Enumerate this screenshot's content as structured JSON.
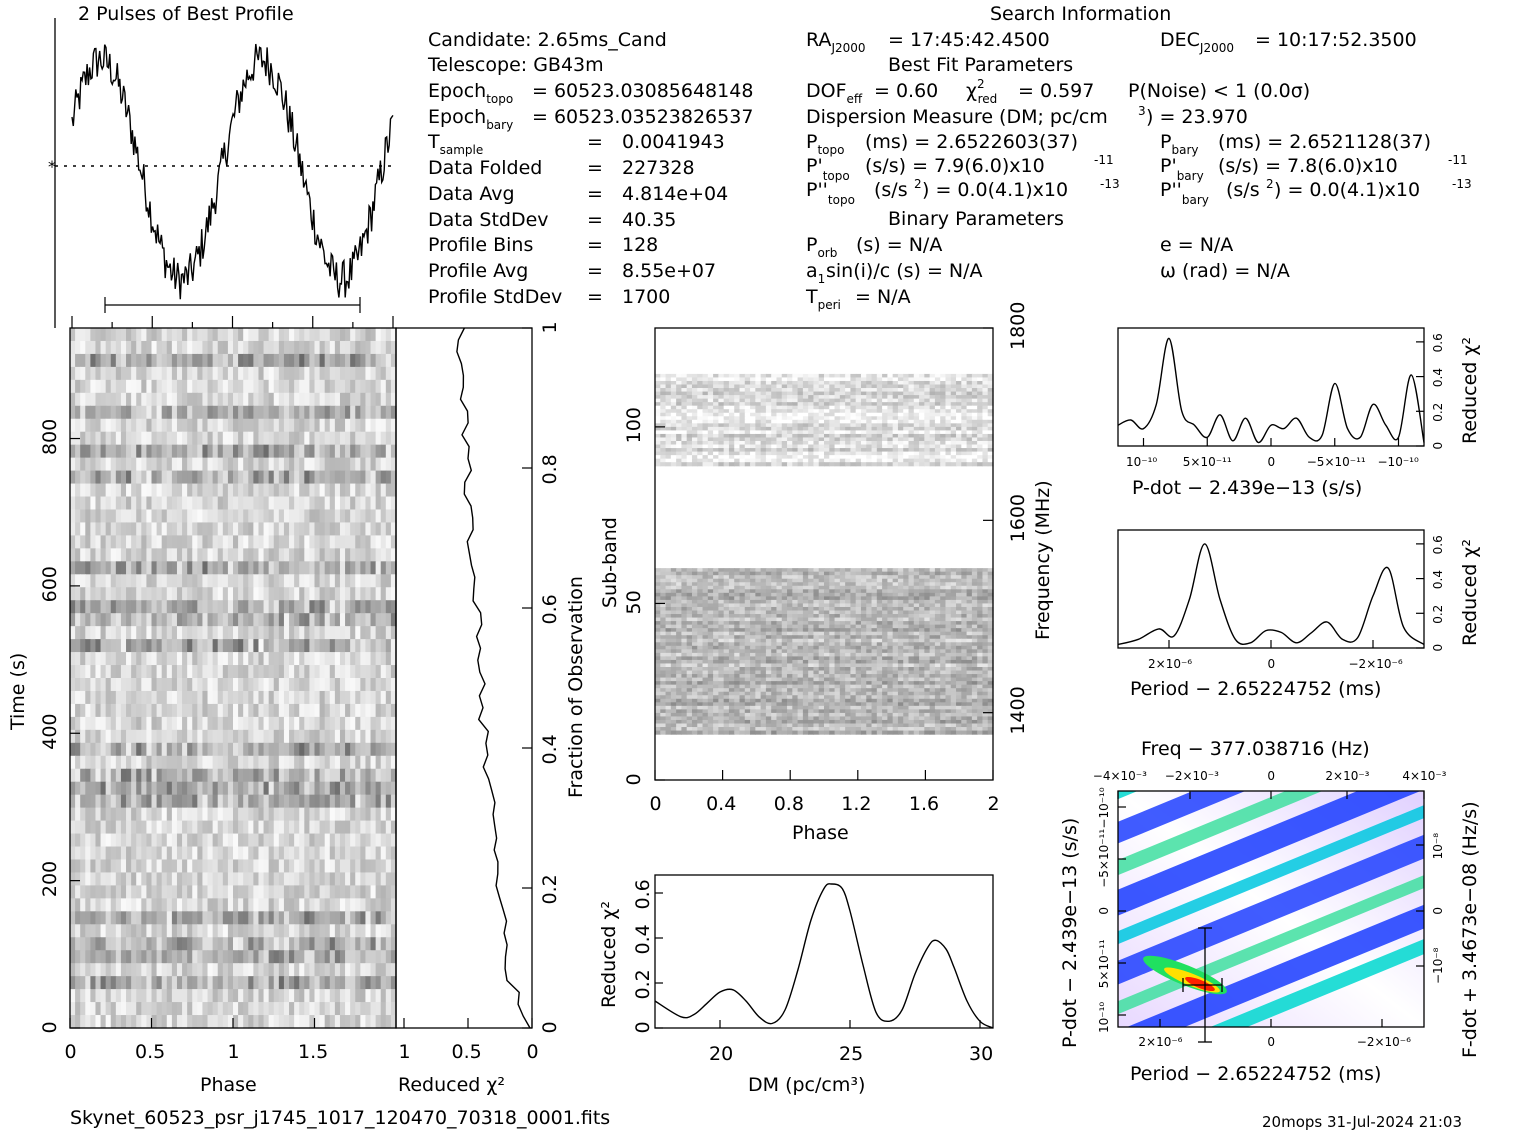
{
  "header": {
    "profile_title": "2 Pulses of Best Profile",
    "search_title": "Search Information",
    "best_fit_title": "Best Fit Parameters",
    "binary_title": "Binary Parameters"
  },
  "info_left": [
    {
      "label": "Candidate:  2.65ms_Cand",
      "value": ""
    },
    {
      "label": "Telescope:  GB43m",
      "value": ""
    },
    {
      "label": "Epoch_topo",
      "value": "= 60523.03085648148"
    },
    {
      "label": "Epoch_bary",
      "value": "= 60523.03523826537"
    },
    {
      "label": "T_sample",
      "value": "0.0041943"
    },
    {
      "label": "Data Folded",
      "value": "227328"
    },
    {
      "label": "Data Avg",
      "value": "4.814e+04"
    },
    {
      "label": "Data StdDev",
      "value": "40.35"
    },
    {
      "label": "Profile Bins",
      "value": "128"
    },
    {
      "label": "Profile Avg",
      "value": "8.55e+07"
    },
    {
      "label": "Profile StdDev",
      "value": "1700"
    }
  ],
  "search_info": {
    "ra": "= 17:45:42.4500",
    "dec": "= 10:17:52.3500",
    "dof": "= 0.60",
    "chi2_red": "= 0.597",
    "p_noise": "P(Noise) < 1   (0.0σ)",
    "dm": "Dispersion Measure (DM; pc/cm",
    "dm_value": ") = 23.970",
    "p_topo": "(ms) =  2.6522603(37)",
    "p_bary": "(ms) =  2.6521128(37)",
    "pd_topo": "(s/s) =  7.9(6.0)x10",
    "pd_bary": "(s/s) =  7.8(6.0)x10",
    "pd_exp": "-11",
    "pdd_topo": "(s/s",
    "pdd_bary": "(s/s",
    "pdd_value": ") = 0.0(4.1)x10",
    "pdd_exp": "-13",
    "p_orb": "(s) = N/A",
    "e": "e = N/A",
    "a1": "sin(i)/c (s) = N/A",
    "omega": "ω (rad) = N/A",
    "t_peri": "= N/A"
  },
  "footer": {
    "filename": "Skynet_60523_psr_j1745_1017_120470_70318_0001.fits",
    "stamp": "20mops 31-Jul-2024 21:03"
  },
  "colors": {
    "line": "#000000",
    "grid_bg": "#ffffff"
  },
  "chart_data": [
    {
      "type": "line",
      "name": "profile",
      "title": "2 Pulses of Best Profile",
      "x_range": [
        0,
        2
      ],
      "note_shape": "two-pulse folded profile"
    },
    {
      "type": "heatmap",
      "name": "time-phase",
      "xlabel": "Phase",
      "ylabel": "Time (s)",
      "x_ticks": [
        "0",
        "0.5",
        "1",
        "1.5"
      ],
      "y_ticks": [
        "0",
        "200",
        "400",
        "600",
        "800"
      ],
      "xlim": [
        0,
        2
      ],
      "ylim": [
        0,
        950
      ]
    },
    {
      "type": "line",
      "name": "time-chi2",
      "xlabel": "Reduced χ²",
      "ylabel_right": "Fraction of Observation",
      "x_ticks": [
        "1",
        "0.5",
        "0"
      ],
      "y_ticks_right": [
        "0",
        "0.2",
        "0.4",
        "0.6",
        "0.8",
        "1"
      ]
    },
    {
      "type": "heatmap",
      "name": "subband-phase",
      "xlabel": "Phase",
      "ylabel": "Sub-band",
      "ylabel_right": "Frequency (MHz)",
      "x_ticks": [
        "0",
        "0.4",
        "0.8",
        "1.2",
        "1.6",
        "2"
      ],
      "y_ticks": [
        "0",
        "50",
        "100"
      ],
      "y_ticks_right": [
        "1400",
        "1600",
        "1800"
      ],
      "xlim": [
        0,
        2
      ],
      "ylim": [
        0,
        128
      ],
      "empty_band": [
        61,
        89
      ]
    },
    {
      "type": "line",
      "name": "dm-chi2",
      "xlabel": "DM (pc/cm³)",
      "ylabel": "Reduced χ²",
      "x_ticks": [
        "20",
        "25",
        "30"
      ],
      "y_ticks": [
        "0",
        "0.2",
        "0.4",
        "0.6"
      ],
      "xlim": [
        17.5,
        30.5
      ],
      "ylim": [
        0,
        0.68
      ],
      "x": [
        17.5,
        18.5,
        19.0,
        19.5,
        20.0,
        20.5,
        21.0,
        21.5,
        22.0,
        22.5,
        23.0,
        23.5,
        24.0,
        24.3,
        24.7,
        25.0,
        25.5,
        26.0,
        26.5,
        27.0,
        27.5,
        28.0,
        28.3,
        28.7,
        29.0,
        29.5,
        30.0,
        30.5
      ],
      "y": [
        0.12,
        0.05,
        0.06,
        0.11,
        0.16,
        0.17,
        0.12,
        0.05,
        0.02,
        0.08,
        0.26,
        0.48,
        0.62,
        0.64,
        0.62,
        0.52,
        0.28,
        0.07,
        0.03,
        0.08,
        0.24,
        0.36,
        0.39,
        0.35,
        0.27,
        0.12,
        0.03,
        0.0
      ]
    },
    {
      "type": "line",
      "name": "pdot-chi2",
      "xlabel": "P-dot − 2.439e−13 (s/s)",
      "ylabel_right": "Reduced χ²",
      "x_ticks": [
        "10⁻¹⁰",
        "5×10⁻¹¹",
        "0",
        "−5×10⁻¹¹",
        "−10⁻¹⁰"
      ],
      "y_ticks_right": [
        "0",
        "0.2",
        "0.4",
        "0.6"
      ],
      "xlim": [
        1.2e-10,
        -1.2e-10
      ],
      "ylim": [
        0,
        0.68
      ],
      "x": [
        1.2e-10,
        1.1e-10,
        1e-10,
        9e-11,
        8e-11,
        7e-11,
        6e-11,
        5e-11,
        4e-11,
        3e-11,
        2e-11,
        1e-11,
        0,
        -1e-11,
        -2e-11,
        -3e-11,
        -4e-11,
        -5e-11,
        -6e-11,
        -7e-11,
        -8e-11,
        -9e-11,
        -1e-10,
        -1.1e-10,
        -1.2e-10
      ],
      "y": [
        0.12,
        0.15,
        0.1,
        0.24,
        0.62,
        0.2,
        0.12,
        0.05,
        0.18,
        0.03,
        0.16,
        0.02,
        0.12,
        0.1,
        0.16,
        0.05,
        0.06,
        0.36,
        0.1,
        0.05,
        0.24,
        0.12,
        0.05,
        0.41,
        0.02
      ]
    },
    {
      "type": "line",
      "name": "period-chi2",
      "xlabel": "Period − 2.65224752 (ms)",
      "ylabel_right": "Reduced χ²",
      "x_ticks": [
        "2×10⁻⁶",
        "0",
        "−2×10⁻⁶"
      ],
      "y_ticks_right": [
        "0",
        "0.2",
        "0.4",
        "0.6"
      ],
      "xlim": [
        3e-06,
        -3e-06
      ],
      "ylim": [
        0,
        0.68
      ],
      "x": [
        3e-06,
        2.6e-06,
        2.2e-06,
        1.9e-06,
        1.6e-06,
        1.3e-06,
        1e-06,
        7e-07,
        4e-07,
        1e-07,
        -2e-07,
        -5e-07,
        -8e-07,
        -1.1e-06,
        -1.4e-06,
        -1.7e-06,
        -2e-06,
        -2.3e-06,
        -2.6e-06,
        -3e-06
      ],
      "y": [
        0.02,
        0.05,
        0.11,
        0.07,
        0.28,
        0.6,
        0.28,
        0.05,
        0.03,
        0.1,
        0.09,
        0.03,
        0.09,
        0.15,
        0.05,
        0.06,
        0.3,
        0.46,
        0.12,
        0.02
      ]
    },
    {
      "type": "heatmap",
      "name": "period-pdot",
      "title": "Freq − 377.038716 (Hz)",
      "xlabel": "Period − 2.65224752 (ms)",
      "ylabel": "P-dot − 2.439e−13 (s/s)",
      "ylabel_right": "F-dot + 3.4673e−08 (Hz/s)",
      "top_ticks": [
        "−4×10⁻³",
        "−2×10⁻³",
        "0",
        "2×10⁻³",
        "4×10⁻³"
      ],
      "x_ticks": [
        "2×10⁻⁶",
        "0",
        "−2×10⁻⁶"
      ],
      "y_ticks": [
        "10⁻¹⁰",
        "5×10⁻¹¹",
        "0",
        "−5×10⁻¹¹",
        "−10⁻¹⁰"
      ],
      "y_ticks_right": [
        "−10⁻⁸",
        "0",
        "10⁻⁸"
      ]
    }
  ]
}
